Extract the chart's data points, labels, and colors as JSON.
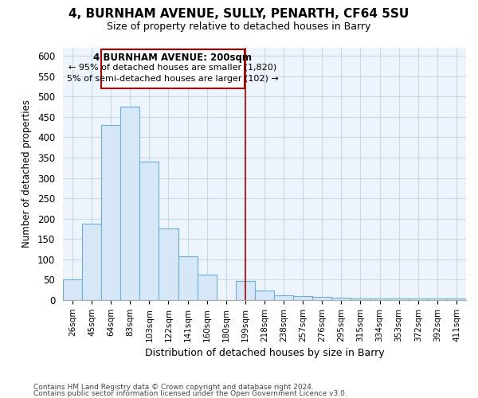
{
  "title1": "4, BURNHAM AVENUE, SULLY, PENARTH, CF64 5SU",
  "title2": "Size of property relative to detached houses in Barry",
  "xlabel": "Distribution of detached houses by size in Barry",
  "ylabel": "Number of detached properties",
  "bin_labels": [
    "26sqm",
    "45sqm",
    "64sqm",
    "83sqm",
    "103sqm",
    "122sqm",
    "141sqm",
    "160sqm",
    "180sqm",
    "199sqm",
    "218sqm",
    "238sqm",
    "257sqm",
    "276sqm",
    "295sqm",
    "315sqm",
    "334sqm",
    "353sqm",
    "372sqm",
    "392sqm",
    "411sqm"
  ],
  "bar_heights": [
    50,
    188,
    430,
    475,
    340,
    175,
    108,
    62,
    0,
    46,
    24,
    11,
    10,
    7,
    5,
    4,
    4,
    3,
    3,
    4,
    3
  ],
  "bar_color": "#d6e8f7",
  "bar_edge_color": "#6aaed6",
  "vline_color": "#aa0000",
  "annotation_title": "4 BURNHAM AVENUE: 200sqm",
  "annotation_line1": "← 95% of detached houses are smaller (1,820)",
  "annotation_line2": "5% of semi-detached houses are larger (102) →",
  "annotation_box_color": "#ffffff",
  "annotation_box_edge_color": "#aa0000",
  "ylim": [
    0,
    620
  ],
  "yticks": [
    0,
    50,
    100,
    150,
    200,
    250,
    300,
    350,
    400,
    450,
    500,
    550,
    600
  ],
  "footnote1": "Contains HM Land Registry data © Crown copyright and database right 2024.",
  "footnote2": "Contains public sector information licensed under the Open Government Licence v3.0.",
  "bg_color": "#ffffff",
  "grid_color": "#c8d8e8"
}
